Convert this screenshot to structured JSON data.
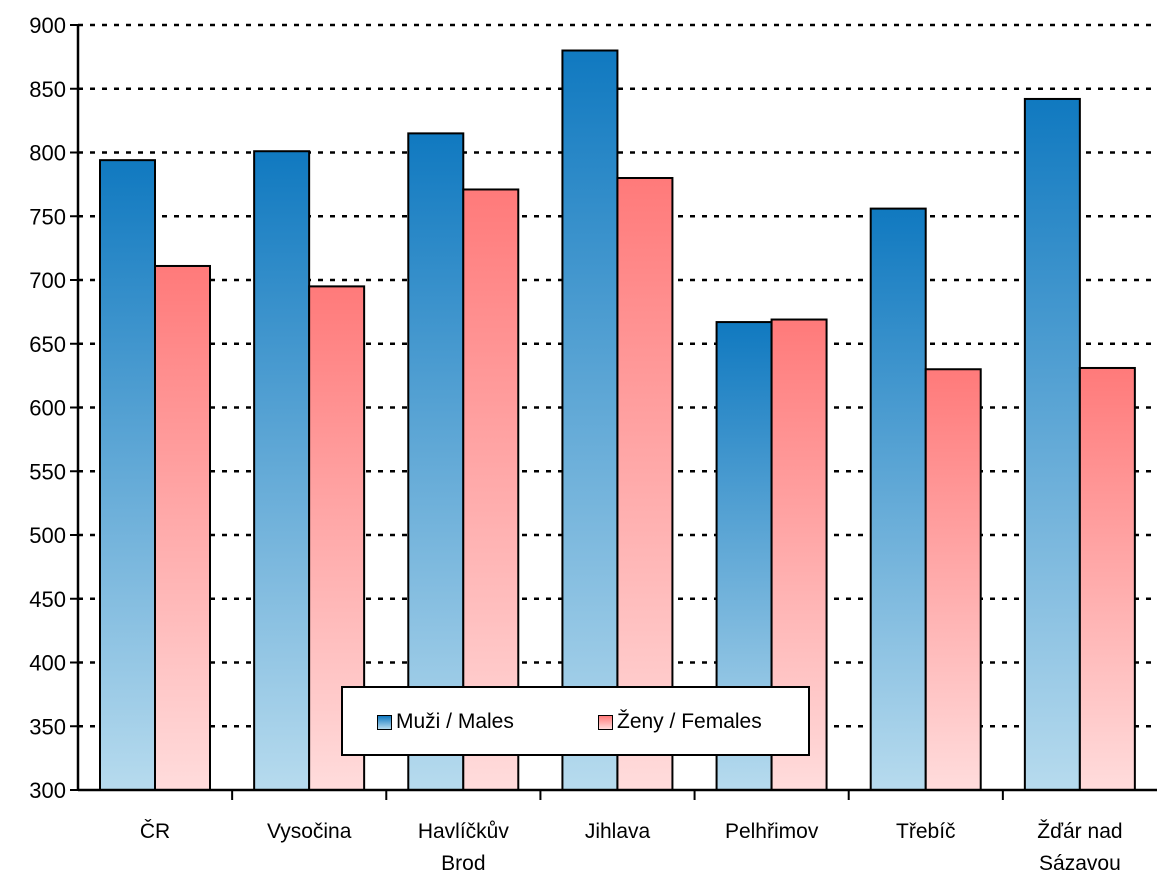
{
  "chart_data": {
    "type": "bar",
    "categories": [
      [
        "ČR"
      ],
      [
        "Vysočina"
      ],
      [
        "Havlíčkův",
        "Brod"
      ],
      [
        "Jihlava"
      ],
      [
        "Pelhřimov"
      ],
      [
        "Třebíč"
      ],
      [
        "Žďár nad",
        "Sázavou"
      ]
    ],
    "series": [
      {
        "name": "Muži / Males",
        "values": [
          794,
          801,
          815,
          880,
          667,
          756,
          842
        ]
      },
      {
        "name": "Ženy / Females",
        "values": [
          711,
          695,
          771,
          780,
          669,
          630,
          631
        ]
      }
    ],
    "ylim": [
      300,
      900
    ],
    "yticks": [
      300,
      350,
      400,
      450,
      500,
      550,
      600,
      650,
      700,
      750,
      800,
      850,
      900
    ],
    "grid": true,
    "grid_style": "dotted",
    "legend_position": "bottom-center",
    "colors": {
      "males_top": "#1079c0",
      "males_bottom": "#b7dbee",
      "females_top": "#ff7a7a",
      "females_bottom": "#ffdcdc"
    }
  }
}
